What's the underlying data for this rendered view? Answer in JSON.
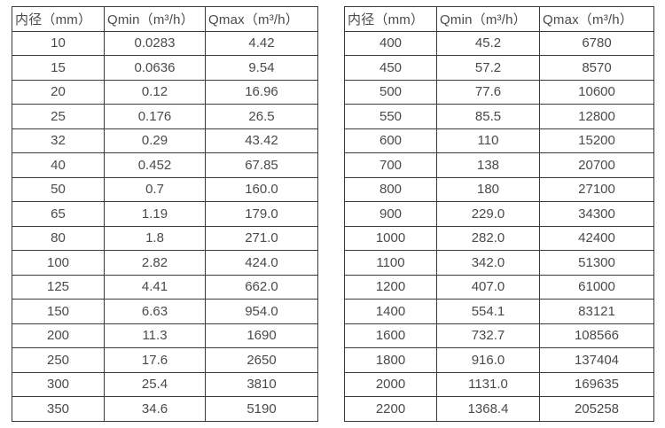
{
  "page": {
    "background": "#ffffff",
    "text_color": "#4a4a4a",
    "border_color": "#3a3a3a"
  },
  "chart_data": [
    {
      "type": "table",
      "name": "flow-spec-small-diameters",
      "headers": [
        "内径（mm）",
        "Qmin（m³/h）",
        "Qmax（m³/h）"
      ],
      "rows": [
        [
          "10",
          "0.0283",
          "4.42"
        ],
        [
          "15",
          "0.0636",
          "9.54"
        ],
        [
          "20",
          "0.12",
          "16.96"
        ],
        [
          "25",
          "0.176",
          "26.5"
        ],
        [
          "32",
          "0.29",
          "43.42"
        ],
        [
          "40",
          "0.452",
          "67.85"
        ],
        [
          "50",
          "0.7",
          "160.0"
        ],
        [
          "65",
          "1.19",
          "179.0"
        ],
        [
          "80",
          "1.8",
          "271.0"
        ],
        [
          "100",
          "2.82",
          "424.0"
        ],
        [
          "125",
          "4.41",
          "662.0"
        ],
        [
          "150",
          "6.63",
          "954.0"
        ],
        [
          "200",
          "11.3",
          "1690"
        ],
        [
          "250",
          "17.6",
          "2650"
        ],
        [
          "300",
          "25.4",
          "3810"
        ],
        [
          "350",
          "34.6",
          "5190"
        ]
      ]
    },
    {
      "type": "table",
      "name": "flow-spec-large-diameters",
      "headers": [
        "内径（mm）",
        "Qmin（m³/h）",
        "Qmax（m³/h）"
      ],
      "rows": [
        [
          "400",
          "45.2",
          "6780"
        ],
        [
          "450",
          "57.2",
          "8570"
        ],
        [
          "500",
          "77.6",
          "10600"
        ],
        [
          "550",
          "85.5",
          "12800"
        ],
        [
          "600",
          "110",
          "15200"
        ],
        [
          "700",
          "138",
          "20700"
        ],
        [
          "800",
          "180",
          "27100"
        ],
        [
          "900",
          "229.0",
          "34300"
        ],
        [
          "1000",
          "282.0",
          "42400"
        ],
        [
          "1100",
          "342.0",
          "51300"
        ],
        [
          "1200",
          "407.0",
          "61000"
        ],
        [
          "1400",
          "554.1",
          "83121"
        ],
        [
          "1600",
          "732.7",
          "108566"
        ],
        [
          "1800",
          "916.0",
          "137404"
        ],
        [
          "2000",
          "1131.0",
          "169635"
        ],
        [
          "2200",
          "1368.4",
          "205258"
        ]
      ]
    }
  ]
}
